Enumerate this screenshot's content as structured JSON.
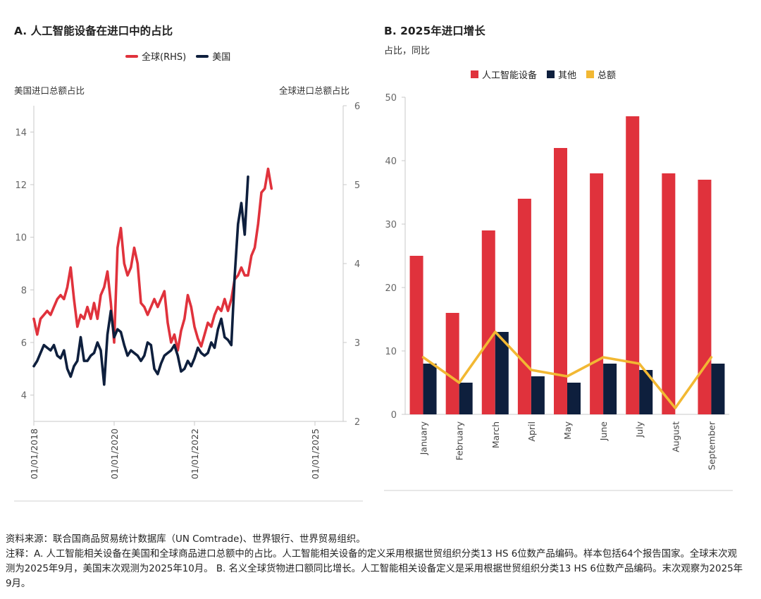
{
  "panel_a": {
    "title": "A. 人工智能设备在进口中的占比",
    "legend": [
      {
        "label": "全球(RHS)",
        "color": "#e0323c"
      },
      {
        "label": "美国",
        "color": "#0e1f3d"
      }
    ],
    "left_axis_label": "美国进口总额占比",
    "right_axis_label": "全球进口总额占比"
  },
  "panel_b": {
    "title": "B. 2025年进口增长",
    "subtitle": "占比，同比",
    "legend": [
      {
        "label": "人工智能设备",
        "color": "#e0323c"
      },
      {
        "label": "其他",
        "color": "#0e1f3d"
      },
      {
        "label": "总额",
        "color": "#f2b833"
      }
    ]
  },
  "chart_data": [
    {
      "type": "line",
      "title": "A. 人工智能设备在进口中的占比",
      "ylabel": "美国进口总额占比",
      "y2label": "全球进口总额占比",
      "x_start": "2018-01",
      "x_end": "2025-10",
      "x_ticks": [
        "01/01/2018",
        "01/01/2020",
        "01/01/2022",
        "01/01/2025"
      ],
      "x_tick_months": [
        0,
        24,
        48,
        84
      ],
      "y_left_ticks": [
        4,
        6,
        8,
        10,
        12,
        14
      ],
      "y_left_range": [
        3,
        15
      ],
      "y_right_ticks": [
        2,
        3,
        4,
        5,
        6
      ],
      "y_right_range": [
        2,
        6
      ],
      "series": [
        {
          "name": "全球(RHS)",
          "axis": "right",
          "color": "#e0323c",
          "values": [
            3.3,
            3.1,
            3.3,
            3.35,
            3.4,
            3.35,
            3.45,
            3.55,
            3.6,
            3.55,
            3.7,
            3.95,
            3.55,
            3.2,
            3.35,
            3.3,
            3.45,
            3.3,
            3.5,
            3.3,
            3.6,
            3.7,
            3.9,
            3.5,
            3.0,
            4.2,
            4.45,
            4.0,
            3.85,
            3.95,
            4.2,
            4.0,
            3.5,
            3.45,
            3.35,
            3.45,
            3.55,
            3.45,
            3.55,
            3.65,
            3.25,
            3.0,
            3.1,
            2.9,
            3.15,
            3.3,
            3.6,
            3.45,
            3.2,
            3.05,
            2.95,
            3.1,
            3.25,
            3.2,
            3.35,
            3.45,
            3.4,
            3.55,
            3.4,
            3.55,
            3.8,
            3.85,
            3.95,
            3.85,
            3.85,
            4.1,
            4.2,
            4.5,
            4.9,
            4.95,
            5.2,
            4.95
          ]
        },
        {
          "name": "美国",
          "axis": "left",
          "color": "#0e1f3d",
          "values": [
            5.1,
            5.3,
            5.6,
            5.9,
            5.8,
            5.7,
            5.9,
            5.5,
            5.4,
            5.7,
            5.0,
            4.7,
            5.1,
            5.3,
            6.2,
            5.3,
            5.3,
            5.5,
            5.6,
            6.0,
            5.7,
            4.4,
            6.3,
            7.2,
            6.2,
            6.5,
            6.4,
            5.9,
            5.5,
            5.7,
            5.6,
            5.5,
            5.3,
            5.5,
            6.0,
            5.9,
            5.0,
            4.8,
            5.2,
            5.5,
            5.6,
            5.7,
            5.9,
            5.5,
            4.9,
            5.0,
            5.3,
            5.1,
            5.4,
            5.8,
            5.6,
            5.5,
            5.6,
            6.0,
            5.8,
            6.5,
            6.9,
            6.2,
            6.1,
            5.9,
            8.5,
            10.5,
            11.3,
            10.1,
            12.3
          ]
        }
      ]
    },
    {
      "type": "bar",
      "title": "B. 2025年进口增长",
      "subtitle": "占比，同比",
      "categories": [
        "January",
        "February",
        "March",
        "April",
        "May",
        "June",
        "July",
        "August",
        "September"
      ],
      "ylim": [
        0,
        50
      ],
      "y_ticks": [
        0,
        10,
        20,
        30,
        40,
        50
      ],
      "series": [
        {
          "name": "人工智能设备",
          "type": "bar",
          "color": "#e0323c",
          "values": [
            25,
            16,
            29,
            34,
            42,
            38,
            47,
            38,
            37
          ]
        },
        {
          "name": "其他",
          "type": "bar",
          "color": "#0e1f3d",
          "values": [
            8,
            5,
            13,
            6,
            5,
            8,
            7,
            0,
            8
          ]
        },
        {
          "name": "总额",
          "type": "line",
          "color": "#f2b833",
          "values": [
            9,
            5,
            13,
            7,
            6,
            9,
            8,
            1,
            9
          ]
        }
      ]
    }
  ],
  "notes": {
    "source": "资料来源：联合国商品贸易统计数据库（UN Comtrade)、世界银行、世界贸易组织。",
    "note": "注释：A. 人工智能相关设备在美国和全球商品进口总额中的占比。人工智能相关设备的定义采用根据世贸组织分类13 HS 6位数产品编码。样本包括64个报告国家。全球末次观测为2025年9月，美国末次观测为2025年10月。 B. 名义全球货物进口额同比增长。人工智能相关设备定义是采用根据世贸组织分类13 HS 6位数产品编码。末次观察为2025年9月。"
  }
}
